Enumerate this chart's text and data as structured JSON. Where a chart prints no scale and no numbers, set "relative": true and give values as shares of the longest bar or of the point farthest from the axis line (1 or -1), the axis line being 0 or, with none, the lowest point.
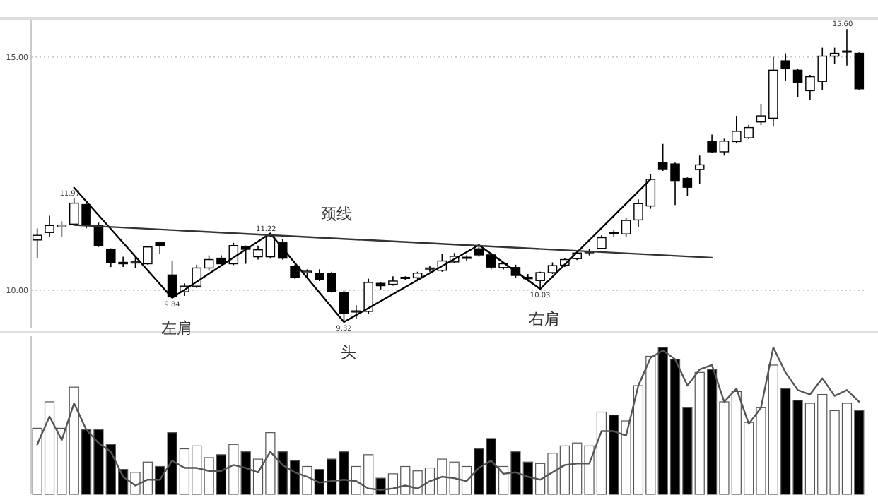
{
  "chart_data": [
    {
      "type": "candlestick",
      "categories": [
        null,
        null,
        null,
        null,
        null,
        null,
        null,
        null,
        null,
        null,
        null,
        null,
        null,
        null,
        null,
        null,
        null,
        null,
        null,
        null,
        null,
        null,
        null,
        null,
        null,
        null,
        null,
        null,
        null,
        null,
        null,
        null,
        null,
        null,
        null,
        null,
        null,
        null,
        null,
        null,
        null,
        null,
        null,
        null,
        null,
        null,
        null,
        null,
        null,
        null,
        null,
        null,
        null,
        null,
        null,
        null,
        null,
        null,
        null,
        null,
        null,
        null,
        null,
        null,
        null,
        null,
        null,
        null
      ],
      "ohlc": [
        [
          11.08,
          11.33,
          10.69,
          11.18
        ],
        [
          11.24,
          11.6,
          11.14,
          11.39
        ],
        [
          11.36,
          11.48,
          11.14,
          11.4
        ],
        [
          11.42,
          11.97,
          11.4,
          11.87
        ],
        [
          11.84,
          11.87,
          11.33,
          11.39
        ],
        [
          11.39,
          11.45,
          10.93,
          10.96
        ],
        [
          10.87,
          10.9,
          10.5,
          10.6
        ],
        [
          10.6,
          10.72,
          10.5,
          10.57
        ],
        [
          10.59,
          10.72,
          10.48,
          10.61
        ],
        [
          10.57,
          10.95,
          10.55,
          10.93
        ],
        [
          11.02,
          11.05,
          10.78,
          10.96
        ],
        [
          10.33,
          10.63,
          9.84,
          9.86
        ],
        [
          9.97,
          10.15,
          9.88,
          10.09
        ],
        [
          10.09,
          10.55,
          10.05,
          10.48
        ],
        [
          10.48,
          10.75,
          10.42,
          10.66
        ],
        [
          10.69,
          10.75,
          10.55,
          10.57
        ],
        [
          10.57,
          11.02,
          10.54,
          10.96
        ],
        [
          10.93,
          10.96,
          10.57,
          10.88
        ],
        [
          10.72,
          10.96,
          10.66,
          10.87
        ],
        [
          10.72,
          11.22,
          10.68,
          11.15
        ],
        [
          11.02,
          11.1,
          10.66,
          10.69
        ],
        [
          10.51,
          10.55,
          10.25,
          10.27
        ],
        [
          10.38,
          10.45,
          10.28,
          10.41
        ],
        [
          10.37,
          10.45,
          10.2,
          10.23
        ],
        [
          10.37,
          10.4,
          9.95,
          9.97
        ],
        [
          9.96,
          10.0,
          9.32,
          9.51
        ],
        [
          9.54,
          9.68,
          9.4,
          9.56
        ],
        [
          9.55,
          10.25,
          9.5,
          10.17
        ],
        [
          10.15,
          10.18,
          10.02,
          10.1
        ],
        [
          10.13,
          10.3,
          10.1,
          10.2
        ],
        [
          10.26,
          10.3,
          10.22,
          10.28
        ],
        [
          10.27,
          10.4,
          10.2,
          10.37
        ],
        [
          10.46,
          10.52,
          10.4,
          10.48
        ],
        [
          10.43,
          10.78,
          10.4,
          10.63
        ],
        [
          10.61,
          10.8,
          10.58,
          10.73
        ],
        [
          10.69,
          10.75,
          10.63,
          10.71
        ],
        [
          10.89,
          10.97,
          10.72,
          10.76
        ],
        [
          10.76,
          10.8,
          10.45,
          10.5
        ],
        [
          10.49,
          10.6,
          10.45,
          10.57
        ],
        [
          10.49,
          10.55,
          10.27,
          10.32
        ],
        [
          10.28,
          10.35,
          10.2,
          10.25
        ],
        [
          10.21,
          10.4,
          10.03,
          10.38
        ],
        [
          10.38,
          10.6,
          10.35,
          10.53
        ],
        [
          10.54,
          10.7,
          10.5,
          10.66
        ],
        [
          10.68,
          10.85,
          10.65,
          10.8
        ],
        [
          10.81,
          10.88,
          10.75,
          10.83
        ],
        [
          10.9,
          11.18,
          10.88,
          11.13
        ],
        [
          11.24,
          11.3,
          11.15,
          11.22
        ],
        [
          11.21,
          11.55,
          11.14,
          11.5
        ],
        [
          11.51,
          11.95,
          11.36,
          11.86
        ],
        [
          11.81,
          12.5,
          11.75,
          12.38
        ],
        [
          12.74,
          13.14,
          12.56,
          12.59
        ],
        [
          12.71,
          12.74,
          11.83,
          12.34
        ],
        [
          12.4,
          12.42,
          12.03,
          12.21
        ],
        [
          12.59,
          12.89,
          12.28,
          12.69
        ],
        [
          13.19,
          13.34,
          12.95,
          12.97
        ],
        [
          12.97,
          13.25,
          12.89,
          13.2
        ],
        [
          13.19,
          13.74,
          13.15,
          13.41
        ],
        [
          13.27,
          13.55,
          13.24,
          13.49
        ],
        [
          13.61,
          14.0,
          13.54,
          13.74
        ],
        [
          13.69,
          15.0,
          13.51,
          14.72
        ],
        [
          14.92,
          15.08,
          14.5,
          14.75
        ],
        [
          14.72,
          14.75,
          14.15,
          14.45
        ],
        [
          14.28,
          14.62,
          14.09,
          14.58
        ],
        [
          14.48,
          15.2,
          14.3,
          15.02
        ],
        [
          15.02,
          15.2,
          14.85,
          15.08
        ],
        [
          15.11,
          15.6,
          14.82,
          15.13
        ],
        [
          15.08,
          15.1,
          14.3,
          14.32
        ]
      ],
      "series": [
        {
          "type": "line",
          "color": "#000000",
          "values": [
            null,
            null,
            null,
            12.2,
            null,
            null,
            null,
            null,
            null,
            null,
            null,
            9.84,
            null,
            null,
            null,
            null,
            null,
            null,
            null,
            11.22,
            null,
            null,
            null,
            null,
            null,
            9.32,
            null,
            null,
            null,
            null,
            null,
            null,
            null,
            null,
            null,
            null,
            10.97,
            null,
            null,
            null,
            null,
            10.03,
            null,
            null,
            null,
            null,
            null,
            null,
            null,
            null,
            12.38,
            null,
            null,
            null,
            null,
            null,
            null,
            null,
            null,
            null,
            null,
            null,
            null,
            null,
            null,
            null,
            null,
            null
          ]
        },
        {
          "type": "line",
          "color": "#333333",
          "values": [
            null,
            null,
            null,
            11.4,
            null,
            null,
            null,
            null,
            null,
            null,
            null,
            null,
            null,
            null,
            null,
            null,
            null,
            null,
            null,
            null,
            null,
            null,
            null,
            null,
            null,
            null,
            null,
            null,
            null,
            null,
            null,
            null,
            null,
            null,
            null,
            null,
            null,
            null,
            null,
            null,
            null,
            null,
            null,
            null,
            null,
            null,
            null,
            null,
            null,
            null,
            null,
            null,
            null,
            null,
            null,
            10.7,
            null,
            null,
            null,
            null,
            null,
            null,
            null,
            null,
            null,
            null,
            null,
            null
          ]
        }
      ],
      "ylim": [
        9.2,
        15.8
      ],
      "yticks": [
        {
          "value": 15,
          "label": "15.00"
        },
        {
          "value": 10,
          "label": "10.00"
        }
      ],
      "grid": "y",
      "annotations": [
        {
          "text": "11.97",
          "y": 11.97
        },
        {
          "text": "9.84",
          "y": 9.84
        },
        {
          "text": "左肩",
          "y": 9.84
        },
        {
          "text": "11.22",
          "y": 11.22
        },
        {
          "text": "9.32",
          "y": 9.32
        },
        {
          "text": "头",
          "y": 9.32
        },
        {
          "text": "10.03",
          "y": 10.03
        },
        {
          "text": "右肩",
          "y": 10.03
        },
        {
          "text": "15.60",
          "y": 15.6
        },
        "颈线"
      ]
    },
    {
      "type": "bar",
      "relative": true,
      "categories": [
        null,
        null,
        null,
        null,
        null,
        null,
        null,
        null,
        null,
        null,
        null,
        null,
        null,
        null,
        null,
        null,
        null,
        null,
        null,
        null,
        null,
        null,
        null,
        null,
        null,
        null,
        null,
        null,
        null,
        null,
        null,
        null,
        null,
        null,
        null,
        null,
        null,
        null,
        null,
        null,
        null,
        null,
        null,
        null,
        null,
        null,
        null,
        null,
        null,
        null,
        null,
        null,
        null,
        null,
        null,
        null,
        null,
        null,
        null,
        null,
        null,
        null,
        null,
        null,
        null,
        null,
        null,
        null
      ],
      "series": [
        {
          "type": "bar",
          "values": [
            0.45,
            0.63,
            0.45,
            0.73,
            0.44,
            0.44,
            0.34,
            0.17,
            0.15,
            0.22,
            0.19,
            0.42,
            0.31,
            0.33,
            0.25,
            0.27,
            0.34,
            0.29,
            0.24,
            0.42,
            0.29,
            0.23,
            0.19,
            0.17,
            0.24,
            0.29,
            0.19,
            0.27,
            0.11,
            0.14,
            0.19,
            0.16,
            0.18,
            0.24,
            0.22,
            0.19,
            0.31,
            0.38,
            0.19,
            0.29,
            0.22,
            0.21,
            0.28,
            0.33,
            0.35,
            0.33,
            0.56,
            0.54,
            0.5,
            0.74,
            0.94,
            1,
            0.92,
            0.59,
            0.83,
            0.85,
            0.63,
            0.7,
            0.49,
            0.59,
            0.88,
            0.72,
            0.64,
            0.62,
            0.68,
            0.57,
            0.62,
            0.57
          ],
          "colors": [
            "#ffffff",
            "#ffffff",
            "#ffffff",
            "#ffffff",
            "#000000",
            "#000000",
            "#000000",
            "#000000",
            "#ffffff",
            "#ffffff",
            "#000000",
            "#000000",
            "#ffffff",
            "#ffffff",
            "#ffffff",
            "#000000",
            "#ffffff",
            "#000000",
            "#ffffff",
            "#ffffff",
            "#000000",
            "#000000",
            "#ffffff",
            "#000000",
            "#000000",
            "#000000",
            "#ffffff",
            "#ffffff",
            "#000000",
            "#ffffff",
            "#ffffff",
            "#ffffff",
            "#ffffff",
            "#ffffff",
            "#ffffff",
            "#ffffff",
            "#000000",
            "#000000",
            "#ffffff",
            "#000000",
            "#000000",
            "#ffffff",
            "#ffffff",
            "#ffffff",
            "#ffffff",
            "#ffffff",
            "#ffffff",
            "#000000",
            "#ffffff",
            "#ffffff",
            "#ffffff",
            "#000000",
            "#000000",
            "#000000",
            "#ffffff",
            "#000000",
            "#ffffff",
            "#ffffff",
            "#ffffff",
            "#ffffff",
            "#ffffff",
            "#000000",
            "#000000",
            "#ffffff",
            "#ffffff",
            "#ffffff",
            "#ffffff",
            "#000000"
          ]
        }
      ]
    },
    {
      "type": "line",
      "relative": true,
      "categories": [
        null,
        null,
        null,
        null,
        null,
        null,
        null,
        null,
        null,
        null,
        null,
        null,
        null,
        null,
        null,
        null,
        null,
        null,
        null,
        null,
        null,
        null,
        null,
        null,
        null,
        null,
        null,
        null,
        null,
        null,
        null,
        null,
        null,
        null,
        null,
        null,
        null,
        null,
        null,
        null,
        null,
        null,
        null,
        null,
        null,
        null,
        null,
        null,
        null,
        null,
        null,
        null,
        null,
        null,
        null,
        null,
        null,
        null,
        null,
        null,
        null,
        null,
        null,
        null,
        null,
        null,
        null,
        null
      ],
      "series": [
        {
          "type": "line",
          "color": "#555555",
          "values": [
            0.34,
            0.53,
            0.37,
            0.62,
            0.44,
            0.35,
            0.29,
            0.12,
            0.06,
            0.1,
            0.1,
            0.23,
            0.18,
            0.18,
            0.16,
            0.16,
            0.2,
            0.18,
            0.15,
            0.29,
            0.2,
            0.15,
            0.12,
            0.08,
            0.09,
            0.1,
            0.09,
            0.04,
            0.03,
            0.04,
            0.06,
            0.04,
            0.09,
            0.12,
            0.11,
            0.09,
            0.18,
            0.23,
            0.14,
            0.15,
            0.12,
            0.1,
            0.15,
            0.2,
            0.21,
            0.21,
            0.43,
            0.43,
            0.4,
            0.74,
            0.93,
            0.98,
            0.92,
            0.74,
            0.85,
            0.88,
            0.63,
            0.72,
            0.48,
            0.59,
            1.0,
            0.83,
            0.71,
            0.68,
            0.79,
            0.67,
            0.71,
            0.63
          ]
        }
      ]
    }
  ]
}
